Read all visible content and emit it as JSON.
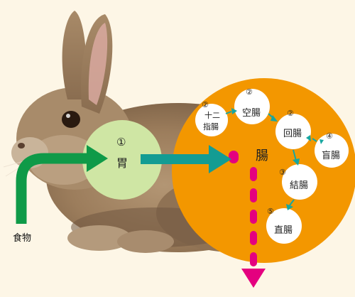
{
  "colors": {
    "background": "#fdf6e6",
    "intestine_circle": "#f39700",
    "stomach_circle": "#cfe6a4",
    "food_arrow": "#0f9a48",
    "stomach_arrow": "#139c93",
    "flow_arrow": "#17a6a0",
    "dotted_path": "#e4007f",
    "node_fill": "#ffffff"
  },
  "food": {
    "label": "食物"
  },
  "stomach": {
    "number": "①",
    "label": "胃"
  },
  "intestine": {
    "label": "腸"
  },
  "nodes": {
    "duodenum": {
      "number": "②",
      "line1": "十二",
      "line2": "指腸"
    },
    "jejunum": {
      "number": "②",
      "label": "空腸"
    },
    "ileum": {
      "number": "②",
      "label": "回腸"
    },
    "cecum": {
      "number": "④",
      "label": "盲腸"
    },
    "colon": {
      "number": "③",
      "label": "結腸"
    },
    "rectum": {
      "number": "⑤",
      "label": "直腸"
    }
  }
}
